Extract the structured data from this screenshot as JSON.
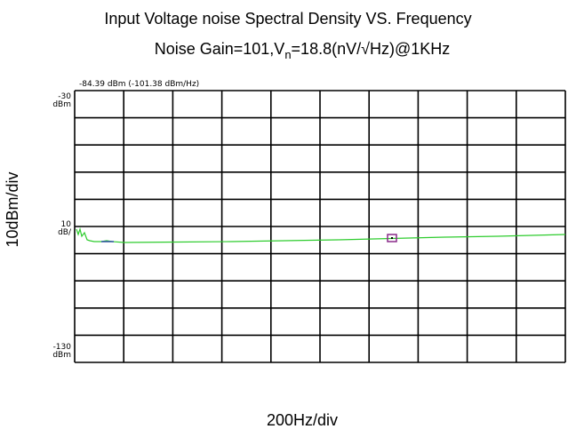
{
  "title": "Input Voltage noise Spectral Density VS. Frequency",
  "subtitle": {
    "before": "Noise Gain=101,V",
    "subscript": "n",
    "after": "=18.8(nV/√Hz)@1KHz"
  },
  "marker_readout": "-84.39 dBm (-101.38 dBm/Hz)",
  "screen_labels": {
    "top": {
      "value": "-30",
      "unit": "dBm"
    },
    "scale": {
      "value": "10",
      "unit": "dB/"
    },
    "bottom": {
      "value": "-130",
      "unit": "dBm"
    }
  },
  "y_axis_label": "10dBm/div",
  "x_axis_label": "200Hz/div"
}
